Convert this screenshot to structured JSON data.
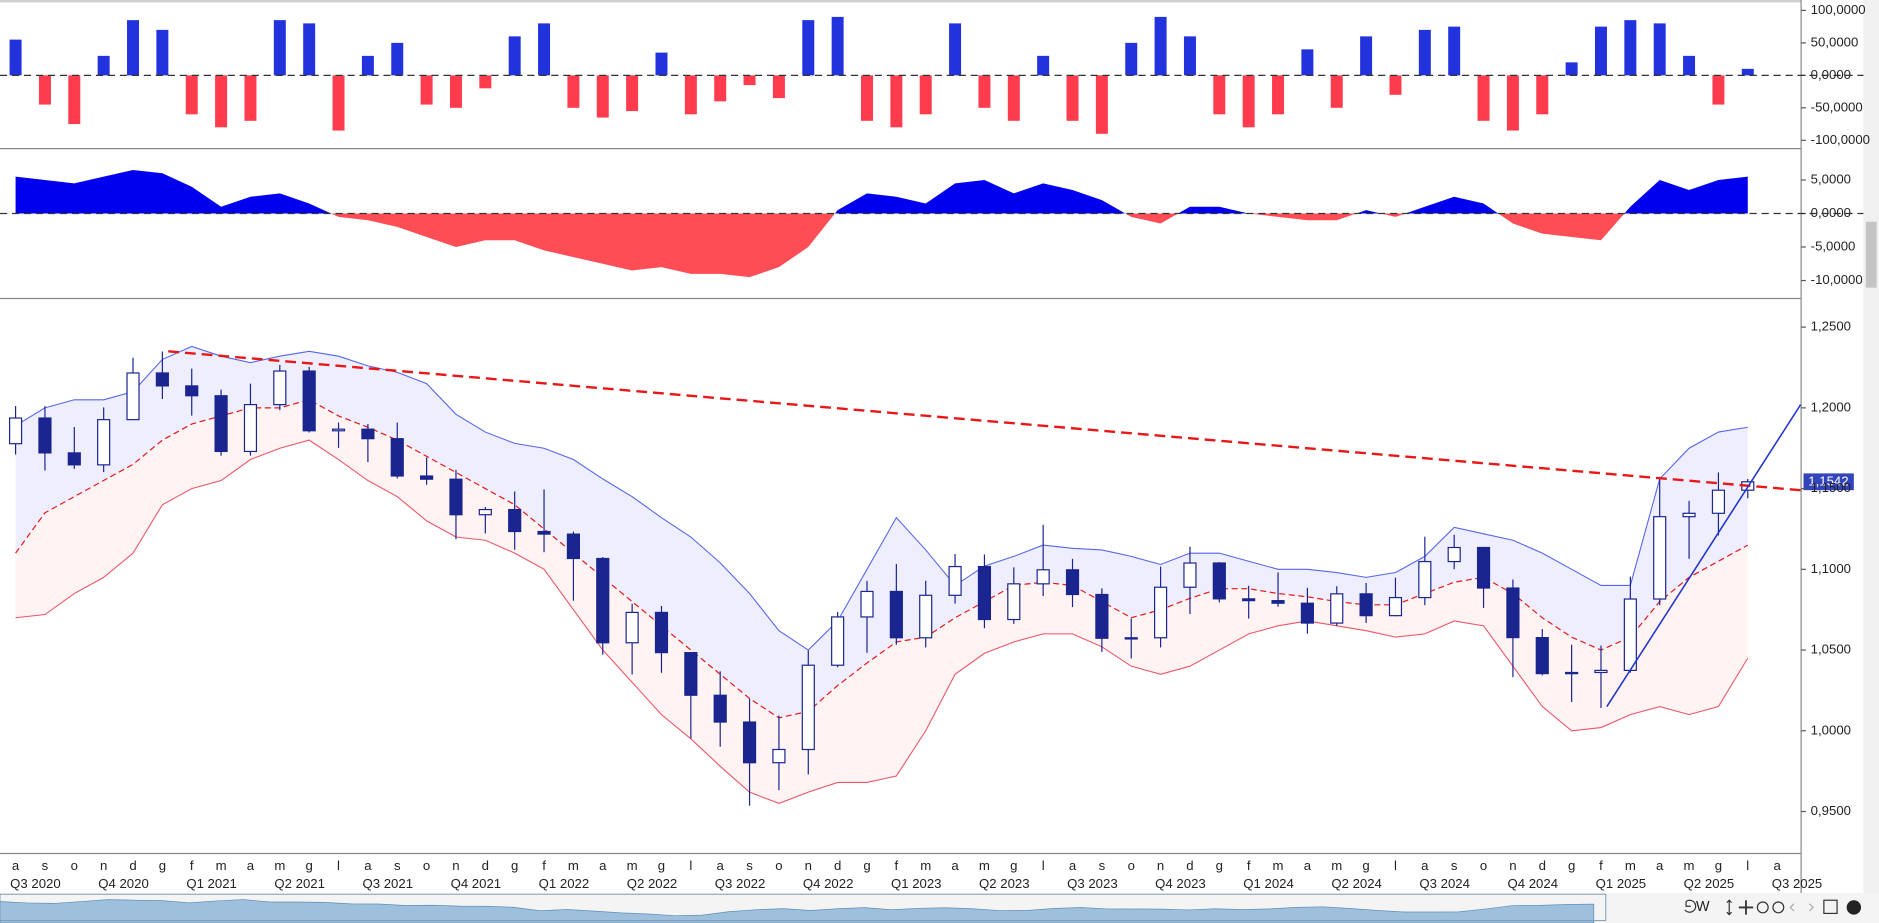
{
  "chart_data": [
    {
      "type": "bar",
      "values": [
        55000,
        -45000,
        -75000,
        30000,
        85000,
        70000,
        -60000,
        -80000,
        -70000,
        85000,
        80000,
        -85000,
        30000,
        50000,
        -45000,
        -50000,
        -20000,
        60000,
        80000,
        -50000,
        -65000,
        -55000,
        35000,
        -60000,
        -40000,
        -15000,
        -35000,
        85000,
        90000,
        -70000,
        -80000,
        -60000,
        80000,
        -50000,
        -70000,
        30000,
        -70000,
        -90000,
        50000,
        90000,
        60000,
        -60000,
        -80000,
        -60000,
        40000,
        -50000,
        60000,
        -30000,
        70000,
        75000,
        -70000,
        -85000,
        -60000,
        20000,
        75000,
        85000,
        80000,
        30000,
        -45000,
        10000,
        null
      ],
      "colors": {
        "positive": "#2233dd",
        "negative": "#ff3b4e"
      },
      "ylim": [
        -111000,
        116000
      ],
      "yticks": [
        {
          "value": 100000,
          "label": "100,0000"
        },
        {
          "value": 50000,
          "label": "50,0000"
        },
        {
          "value": 0,
          "label": "0,0000"
        },
        {
          "value": -50000,
          "label": "-50,0000"
        },
        {
          "value": -100000,
          "label": "-100,0000"
        }
      ],
      "zero_line": true
    },
    {
      "type": "area",
      "values": [
        5500,
        5000,
        4500,
        5500,
        6500,
        6000,
        4000,
        1000,
        2500,
        3000,
        1500,
        -500,
        -1000,
        -2000,
        -3500,
        -5000,
        -4000,
        -4000,
        -5500,
        -6500,
        -7500,
        -8500,
        -8000,
        -9000,
        -9000,
        -9500,
        -8000,
        -5000,
        500,
        3000,
        2500,
        1500,
        4500,
        5000,
        3000,
        4500,
        3500,
        2000,
        -500,
        -1500,
        1000,
        1000,
        0,
        -500,
        -1000,
        -1000,
        500,
        -500,
        1000,
        2500,
        1500,
        -1500,
        -3000,
        -3500,
        -4000,
        1000,
        5000,
        3500,
        5000,
        5500,
        null
      ],
      "colors": {
        "positive": "#0000ee",
        "negative": "#ff4d55"
      },
      "ylim": [
        -12500,
        9500
      ],
      "yticks": [
        {
          "value": 5000,
          "label": "5,0000"
        },
        {
          "value": 0,
          "label": "0,0000"
        },
        {
          "value": -5000,
          "label": "-5,0000"
        },
        {
          "value": -10000,
          "label": "-10,0000"
        }
      ],
      "zero_line": true
    },
    {
      "type": "candlestick",
      "categories": [
        "a",
        "s",
        "o",
        "n",
        "d",
        "g",
        "f",
        "m",
        "a",
        "m",
        "g",
        "l",
        "a",
        "s",
        "o",
        "n",
        "d",
        "g",
        "f",
        "m",
        "a",
        "m",
        "g",
        "l",
        "a",
        "s",
        "o",
        "n",
        "d",
        "g",
        "f",
        "m",
        "a",
        "m",
        "g",
        "l",
        "a",
        "s",
        "o",
        "n",
        "d",
        "g",
        "f",
        "m",
        "a",
        "m",
        "g",
        "l",
        "a",
        "s",
        "o",
        "n",
        "d",
        "g",
        "f",
        "m",
        "a",
        "m",
        "g",
        "l",
        "a"
      ],
      "quarters": [
        "Q3 2020",
        "Q4 2020",
        "Q1 2021",
        "Q2 2021",
        "Q3 2021",
        "Q4 2021",
        "Q1 2022",
        "Q2 2022",
        "Q3 2022",
        "Q4 2022",
        "Q1 2023",
        "Q2 2023",
        "Q3 2023",
        "Q4 2023",
        "Q1 2024",
        "Q2 2024",
        "Q3 2024",
        "Q4 2024",
        "Q1 2025",
        "Q2 2025",
        "Q3 2025"
      ],
      "open": [
        1.1778,
        1.1937,
        1.1721,
        1.1647,
        1.1927,
        1.2216,
        1.2136,
        1.2075,
        1.173,
        1.202,
        1.2228,
        1.1858,
        1.1868,
        1.1809,
        1.1578,
        1.1558,
        1.1338,
        1.137,
        1.1234,
        1.1218,
        1.1067,
        1.0545,
        1.0733,
        1.0484,
        1.022,
        1.0054,
        0.9802,
        0.9884,
        1.0406,
        1.0705,
        1.0863,
        1.0576,
        1.0839,
        1.1017,
        1.0689,
        1.091,
        1.0997,
        1.0844,
        1.0573,
        1.0576,
        1.0889,
        1.1039,
        1.0817,
        1.0806,
        1.079,
        1.0667,
        1.0848,
        1.0713,
        1.0825,
        1.1048,
        1.1135,
        1.0884,
        1.0577,
        1.0354,
        1.0361,
        1.0374,
        1.0816,
        1.1326,
        1.1347,
        1.149,
        null
      ],
      "high": [
        1.2011,
        1.2011,
        1.1881,
        1.2003,
        1.231,
        1.2349,
        1.2243,
        1.2113,
        1.215,
        1.2266,
        1.2254,
        1.1909,
        1.19,
        1.1909,
        1.1692,
        1.1616,
        1.1386,
        1.1482,
        1.1495,
        1.1234,
        1.1076,
        1.0787,
        1.0773,
        1.0486,
        1.0368,
        1.0198,
        1.0094,
        1.0497,
        1.0736,
        1.0929,
        1.1033,
        1.0929,
        1.1095,
        1.1092,
        1.1012,
        1.1276,
        1.1065,
        1.0882,
        1.0695,
        1.1017,
        1.114,
        1.1045,
        1.0898,
        1.0981,
        1.0885,
        1.0895,
        1.0916,
        1.0948,
        1.1202,
        1.1214,
        1.1139,
        1.0937,
        1.063,
        1.0533,
        1.0528,
        1.0955,
        1.1573,
        1.1424,
        1.16,
        1.156,
        null
      ],
      "low": [
        1.1711,
        1.1612,
        1.1622,
        1.1602,
        1.1925,
        1.2055,
        1.1952,
        1.1704,
        1.1704,
        1.1986,
        1.1847,
        1.1752,
        1.1664,
        1.1563,
        1.1524,
        1.1186,
        1.1222,
        1.1121,
        1.1106,
        1.0806,
        1.0471,
        1.0349,
        1.0359,
        0.9952,
        0.9901,
        0.9536,
        0.9632,
        0.973,
        1.0393,
        1.0483,
        1.0533,
        1.0516,
        1.0788,
        1.0635,
        1.0662,
        1.0834,
        1.0766,
        1.0488,
        1.0448,
        1.0516,
        1.0723,
        1.0795,
        1.0695,
        1.0768,
        1.0601,
        1.065,
        1.0668,
        1.0709,
        1.0778,
        1.1001,
        1.0761,
        1.0332,
        1.0343,
        1.0178,
        1.0141,
        1.036,
        1.0778,
        1.1065,
        1.121,
        1.144,
        null
      ],
      "close": [
        1.1937,
        1.1721,
        1.1647,
        1.1927,
        1.2216,
        1.2136,
        1.2075,
        1.173,
        1.202,
        1.2228,
        1.1858,
        1.1868,
        1.1809,
        1.1578,
        1.1558,
        1.1338,
        1.137,
        1.1234,
        1.1218,
        1.1067,
        1.0545,
        1.0733,
        1.0484,
        1.022,
        1.0054,
        0.9802,
        0.9884,
        1.0406,
        1.0705,
        1.0863,
        1.0576,
        1.0839,
        1.1017,
        1.0689,
        1.091,
        1.0997,
        1.0844,
        1.0573,
        1.0576,
        1.0889,
        1.1039,
        1.0817,
        1.0806,
        1.079,
        1.0667,
        1.0848,
        1.0713,
        1.0825,
        1.1048,
        1.1135,
        1.0884,
        1.0577,
        1.0354,
        1.0361,
        1.0374,
        1.0816,
        1.1326,
        1.1347,
        1.149,
        1.1542,
        null
      ],
      "bands": {
        "upper": [
          1.189,
          1.2,
          1.205,
          1.205,
          1.21,
          1.23,
          1.238,
          1.232,
          1.228,
          1.232,
          1.235,
          1.232,
          1.226,
          1.222,
          1.215,
          1.196,
          1.185,
          1.178,
          1.175,
          1.168,
          1.156,
          1.145,
          1.132,
          1.12,
          1.104,
          1.085,
          1.062,
          1.05,
          1.068,
          1.1,
          1.132,
          1.112,
          1.09,
          1.102,
          1.108,
          1.115,
          1.113,
          1.112,
          1.108,
          1.103,
          1.11,
          1.11,
          1.105,
          1.1,
          1.1,
          1.098,
          1.095,
          1.098,
          1.108,
          1.126,
          1.122,
          1.118,
          1.11,
          1.1,
          1.09,
          1.09,
          1.156,
          1.175,
          1.185,
          1.188,
          null
        ],
        "middle": [
          1.11,
          1.135,
          1.145,
          1.155,
          1.165,
          1.18,
          1.19,
          1.195,
          1.2,
          1.2,
          1.205,
          1.195,
          1.188,
          1.18,
          1.17,
          1.16,
          1.15,
          1.14,
          1.125,
          1.11,
          1.095,
          1.08,
          1.065,
          1.05,
          1.035,
          1.02,
          1.008,
          1.012,
          1.028,
          1.042,
          1.055,
          1.058,
          1.07,
          1.08,
          1.09,
          1.092,
          1.09,
          1.08,
          1.07,
          1.075,
          1.082,
          1.088,
          1.088,
          1.085,
          1.083,
          1.08,
          1.078,
          1.078,
          1.085,
          1.092,
          1.095,
          1.085,
          1.07,
          1.058,
          1.05,
          1.058,
          1.08,
          1.095,
          1.105,
          1.115,
          null
        ],
        "lower": [
          1.07,
          1.072,
          1.085,
          1.095,
          1.11,
          1.14,
          1.15,
          1.155,
          1.168,
          1.175,
          1.18,
          1.168,
          1.155,
          1.145,
          1.13,
          1.12,
          1.118,
          1.11,
          1.1,
          1.075,
          1.05,
          1.03,
          1.01,
          0.995,
          0.978,
          0.962,
          0.955,
          0.962,
          0.968,
          0.968,
          0.972,
          1.0,
          1.035,
          1.048,
          1.055,
          1.06,
          1.06,
          1.052,
          1.04,
          1.035,
          1.04,
          1.05,
          1.06,
          1.065,
          1.068,
          1.065,
          1.062,
          1.058,
          1.06,
          1.068,
          1.065,
          1.04,
          1.015,
          1.0,
          1.002,
          1.01,
          1.015,
          1.01,
          1.015,
          1.045,
          null
        ],
        "colors": {
          "upper": "#5566ee",
          "middle": "#e81818",
          "lower": "#ee5566",
          "upper_fill": "#eeeeff",
          "lower_fill": "#fff3f3"
        }
      },
      "candle_colors": {
        "up": "#ffffff",
        "down": "#1a2590",
        "outline": "#1a2590"
      },
      "trendlines": [
        {
          "color": "#e81818",
          "dashed": true,
          "x": [
            5.2,
            60.8
          ],
          "values": [
            1.235,
            1.149
          ]
        },
        {
          "color": "#2233cc",
          "dashed": false,
          "x": [
            54.2,
            60.8
          ],
          "values": [
            1.015,
            1.202
          ]
        }
      ],
      "last_price": {
        "value": 1.1542,
        "label": "1,1542"
      },
      "ylim": [
        0.924,
        1.267
      ],
      "yticks": [
        {
          "value": 1.25,
          "label": "1,2500"
        },
        {
          "value": 1.2,
          "label": "1,2000"
        },
        {
          "value": 1.15,
          "label": "1,1500"
        },
        {
          "value": 1.1,
          "label": "1,1000"
        },
        {
          "value": 1.05,
          "label": "1,0500"
        },
        {
          "value": 1.0,
          "label": "1,0000"
        },
        {
          "value": 0.95,
          "label": "0,9500"
        }
      ]
    }
  ],
  "toolbar": {
    "period": "W"
  }
}
